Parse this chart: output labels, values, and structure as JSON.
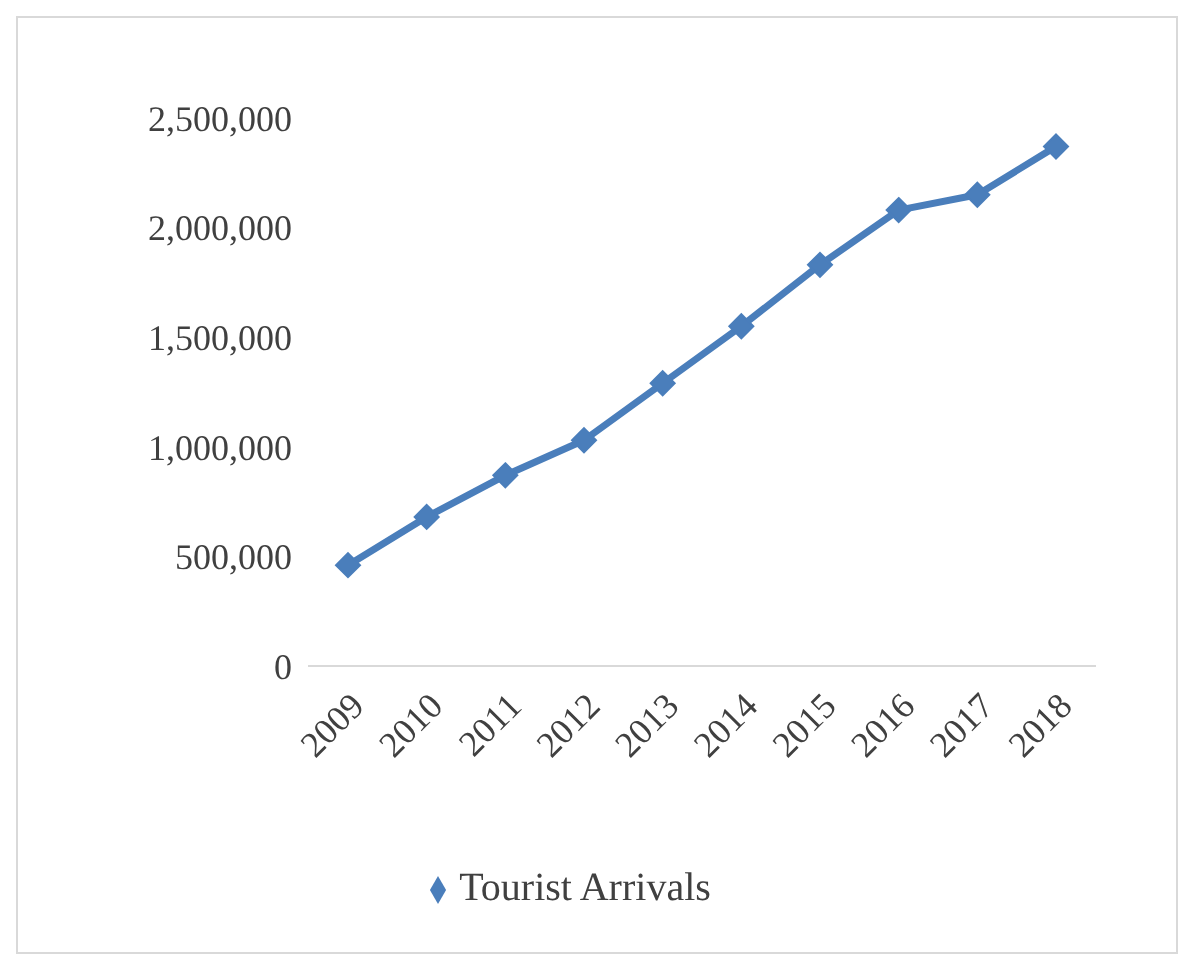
{
  "chart_data": {
    "type": "line",
    "categories": [
      "2009",
      "2010",
      "2011",
      "2012",
      "2013",
      "2014",
      "2015",
      "2016",
      "2017",
      "2018"
    ],
    "series": [
      {
        "name": "Tourist Arrivals",
        "color": "#4a7ebb",
        "values": [
          460000,
          680000,
          870000,
          1030000,
          1290000,
          1550000,
          1830000,
          2080000,
          2150000,
          2370000
        ]
      }
    ],
    "ylim": [
      0,
      2500000
    ],
    "yticks": [
      0,
      {
        "value": 500000,
        "label": "500,000"
      },
      {
        "value": 1000000,
        "label": "1,000,000"
      },
      {
        "value": 1500000,
        "label": "1,500,000"
      },
      {
        "value": 2000000,
        "label": "2,000,000"
      },
      {
        "value": 2500000,
        "label": "2,500,000"
      }
    ],
    "grid": false,
    "legend": "bottom",
    "marker": "diamond",
    "line_style": "solid"
  }
}
